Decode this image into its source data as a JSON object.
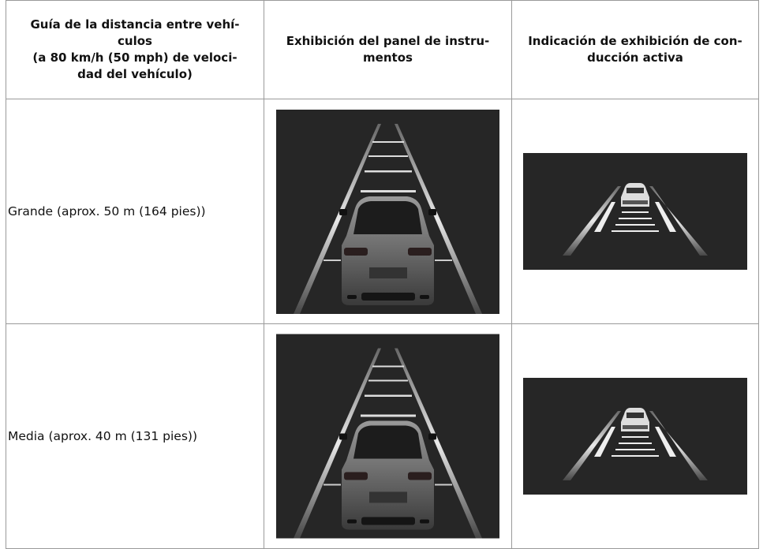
{
  "table": {
    "header": [
      [
        "Guía de la distancia entre vehí-",
        "culos",
        "(a 80 km/h (50 mph) de veloci-",
        "dad del vehículo)"
      ],
      [
        "Exhibición del panel de instru-",
        "mentos"
      ],
      [
        "Indicación de exhibición de con-",
        "ducción activa"
      ]
    ],
    "rows": [
      [
        "Grande (aprox. 50 m (164 pies))"
      ],
      [
        "Media (aprox. 40 m (131 pies))"
      ]
    ]
  }
}
